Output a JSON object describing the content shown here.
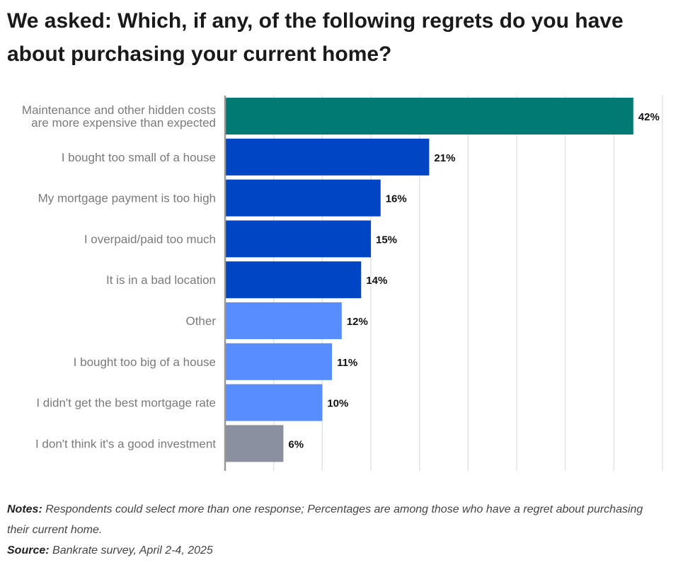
{
  "title": "We asked: Which, if any, of the following regrets do you have about purchasing your current home?",
  "notes_label": "Notes:",
  "notes_text": "Respondents could select more than one response; Percentages are among those who have a regret about purchasing their current home.",
  "source_label": "Source:",
  "source_text": "Bankrate survey, April 2-4, 2025",
  "chart_data": {
    "type": "bar",
    "orientation": "horizontal",
    "categories": [
      [
        "Maintenance and other hidden costs",
        "are more expensive than expected"
      ],
      [
        "I bought too small of a house"
      ],
      [
        "My mortgage payment is too high"
      ],
      [
        "I overpaid/paid too much"
      ],
      [
        "It is in a bad location"
      ],
      [
        "Other"
      ],
      [
        "I bought too big of a house"
      ],
      [
        "I didn't get the best mortgage rate"
      ],
      [
        "I don't think it's a good investment"
      ]
    ],
    "values": [
      42,
      21,
      16,
      15,
      14,
      12,
      11,
      10,
      6
    ],
    "value_labels": [
      "42%",
      "21%",
      "16%",
      "15%",
      "14%",
      "12%",
      "11%",
      "10%",
      "6%"
    ],
    "colors": [
      "#007a72",
      "#0046c4",
      "#0046c4",
      "#0046c4",
      "#0046c4",
      "#578dff",
      "#578dff",
      "#578dff",
      "#8b90a0"
    ],
    "xlim": [
      0,
      45
    ],
    "grid_step": 5,
    "grid": true,
    "gridline_color": "#e3e3e3",
    "axis_color": "#999999",
    "label_color": "#7a7a7a"
  }
}
